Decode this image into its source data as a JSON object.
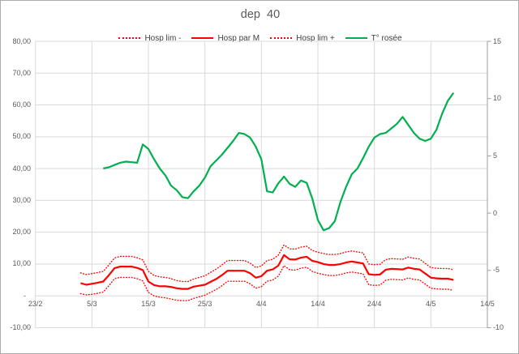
{
  "chart_title": "dep  40",
  "colors": {
    "red": "#ff0000",
    "green": "#00b050",
    "grid": "#dadada",
    "axis_line": "#9c9c9c",
    "axis_text": "#595959",
    "legend_text": "#404040",
    "frame_border": "#ababab"
  },
  "legend": {
    "items": [
      {
        "label": "Hosp lim -",
        "style": "dotted",
        "color": "#ff0000"
      },
      {
        "label": "Hosp par M",
        "style": "solid",
        "color": "#ff0000"
      },
      {
        "label": "Hosp lim +",
        "style": "dotted",
        "color": "#ff0000"
      },
      {
        "label": "T° rosée",
        "style": "solid",
        "color": "#00b050"
      }
    ]
  },
  "chart_data": {
    "type": "line",
    "title": "dep  40",
    "grid": true,
    "legend_position": "top",
    "x_axis": {
      "tick_labels": [
        "23/2",
        "5/3",
        "15/3",
        "25/3",
        "4/4",
        "14/4",
        "24/4",
        "4/5",
        "14/5"
      ],
      "tick_offsets": [
        0,
        10,
        20,
        30,
        40,
        50,
        60,
        70,
        80
      ],
      "range_days": 80
    },
    "left_axis": {
      "tick_labels": [
        "80,00",
        "70,00",
        "60,00",
        "50,00",
        "40,00",
        "30,00",
        "20,00",
        "10,00",
        "-",
        "-10,00"
      ],
      "tick_values": [
        80,
        70,
        60,
        50,
        40,
        30,
        20,
        10,
        0,
        -10
      ],
      "min": -10,
      "max": 80
    },
    "right_axis": {
      "tick_labels": [
        "15",
        "10",
        "5",
        "0",
        "-5",
        "-10"
      ],
      "tick_values": [
        15,
        10,
        5,
        0,
        -5,
        -10
      ],
      "min": -10,
      "max": 15
    },
    "series": [
      {
        "name": "Hosp lim -",
        "axis": "left",
        "color": "#ff0000",
        "style": "dotted",
        "start_offset": 8,
        "values": [
          0.7,
          0.3,
          0.5,
          0.8,
          1.2,
          3.2,
          5.4,
          5.8,
          5.8,
          5.8,
          5.4,
          4.7,
          1.1,
          0.0,
          -0.4,
          -0.6,
          -1.0,
          -1.4,
          -1.5,
          -1.5,
          -0.8,
          -0.3,
          0.2,
          1.1,
          2.0,
          3.2,
          4.6,
          4.6,
          4.6,
          4.6,
          3.8,
          2.4,
          2.9,
          4.6,
          5.0,
          6.2,
          9.5,
          8.2,
          8.1,
          8.7,
          9.0,
          7.7,
          7.1,
          6.7,
          6.4,
          6.4,
          6.7,
          7.2,
          7.5,
          7.2,
          6.9,
          3.5,
          3.3,
          3.4,
          4.9,
          5.2,
          5.1,
          5.0,
          5.6,
          5.2,
          5.0,
          3.7,
          2.4,
          2.2,
          2.1,
          2.1,
          1.7
        ]
      },
      {
        "name": "Hosp par M",
        "axis": "left",
        "color": "#ff0000",
        "style": "solid",
        "start_offset": 8,
        "values": [
          4.0,
          3.5,
          3.8,
          4.1,
          4.5,
          6.5,
          8.7,
          9.2,
          9.2,
          9.2,
          8.8,
          8.1,
          4.5,
          3.4,
          3.0,
          3.0,
          2.8,
          2.4,
          2.2,
          2.2,
          2.9,
          3.2,
          3.5,
          4.4,
          5.3,
          6.5,
          7.9,
          7.9,
          7.9,
          7.9,
          7.1,
          5.7,
          6.2,
          7.9,
          8.3,
          9.5,
          12.8,
          11.5,
          11.4,
          12.0,
          12.3,
          11.0,
          10.6,
          10.0,
          9.7,
          9.7,
          10.0,
          10.5,
          10.8,
          10.5,
          10.2,
          6.8,
          6.6,
          6.7,
          8.2,
          8.5,
          8.4,
          8.3,
          8.9,
          8.5,
          8.3,
          7.0,
          5.7,
          5.5,
          5.4,
          5.4,
          5.0
        ]
      },
      {
        "name": "Hosp lim +",
        "axis": "left",
        "color": "#ff0000",
        "style": "dotted",
        "start_offset": 8,
        "values": [
          7.2,
          6.7,
          7.0,
          7.3,
          7.7,
          9.7,
          11.9,
          12.4,
          12.4,
          12.4,
          12.0,
          11.3,
          7.7,
          6.4,
          6.0,
          5.8,
          5.4,
          4.8,
          4.5,
          4.5,
          5.3,
          5.8,
          6.3,
          7.4,
          8.4,
          9.7,
          11.1,
          11.1,
          11.1,
          11.1,
          10.3,
          8.9,
          9.4,
          11.1,
          11.5,
          12.8,
          16.0,
          14.8,
          14.7,
          15.3,
          15.6,
          14.3,
          13.7,
          13.3,
          13.0,
          13.0,
          13.3,
          13.8,
          14.1,
          13.8,
          13.5,
          10.0,
          9.8,
          9.9,
          11.4,
          11.7,
          11.6,
          11.5,
          12.2,
          11.8,
          11.6,
          10.2,
          8.9,
          8.7,
          8.6,
          8.6,
          8.2
        ]
      },
      {
        "name": "T° rosée",
        "axis": "right",
        "color": "#00b050",
        "style": "solid",
        "start_offset": 12,
        "values": [
          3.9,
          4.0,
          4.2,
          4.4,
          4.5,
          4.45,
          4.4,
          6.0,
          5.6,
          4.7,
          3.9,
          3.3,
          2.4,
          2.0,
          1.4,
          1.3,
          1.9,
          2.4,
          3.1,
          4.1,
          4.6,
          5.1,
          5.7,
          6.3,
          7.0,
          6.9,
          6.6,
          5.8,
          4.7,
          1.9,
          1.8,
          2.6,
          3.2,
          2.55,
          2.3,
          2.85,
          2.65,
          1.3,
          -0.6,
          -1.5,
          -1.3,
          -0.7,
          1.0,
          2.3,
          3.4,
          3.9,
          4.8,
          5.8,
          6.6,
          6.9,
          7.0,
          7.4,
          7.8,
          8.4,
          7.7,
          7.0,
          6.5,
          6.3,
          6.5,
          7.3,
          8.7,
          9.8,
          10.5
        ]
      }
    ]
  }
}
